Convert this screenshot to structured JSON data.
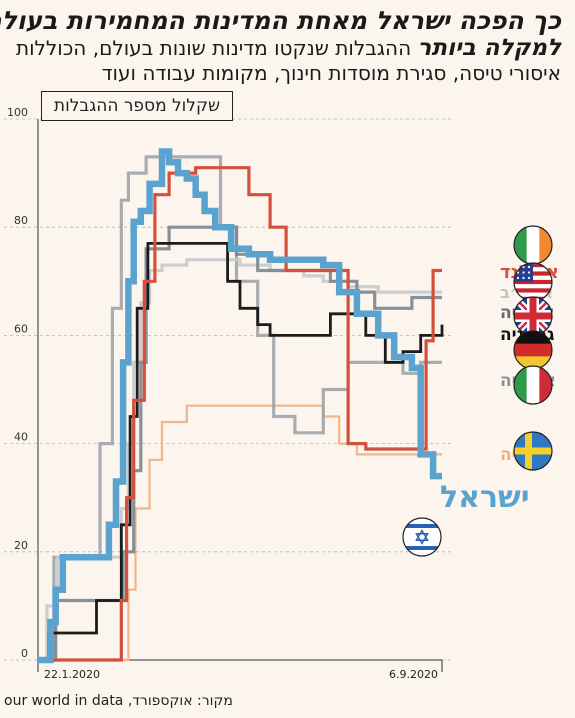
{
  "title": {
    "line1": "כך הפכה ישראל מאחת המדינות המחמירות בעולם",
    "line2_bold": "למקלה ביותר",
    "line2_rest": " ההגבלות שנקטו מדינות שונות בעולם, הכוללות",
    "line3": "איסורי טיסה, סגירת מוסדות חינוך, מקומות עבודה ועוד"
  },
  "source": "מקור: אוקספורד, our world in data",
  "colors": {
    "background": "#fbf5ee",
    "israel": "#5aa3cf",
    "ireland": "#d4503d",
    "usa": "#c8cacc",
    "england": "#7a8690",
    "germany": "#1c1c1c",
    "italy": "#9aa0a6",
    "sweden": "#f2b48a"
  },
  "chart_data": {
    "type": "line",
    "title": "שקלול מספר ההגבלות",
    "ylim": [
      0,
      100
    ],
    "yticks": [
      0,
      20,
      40,
      60,
      80,
      100
    ],
    "xlim": [
      "2020-01-22",
      "2020-09-06"
    ],
    "xtick_labels": [
      "22.1.2020",
      "6.9.2020"
    ],
    "grid": true,
    "series": [
      {
        "key": "israel",
        "name": "ישראל",
        "icon": "israel-flag-icon",
        "x": [
          "2020-01-22",
          "2020-01-29",
          "2020-02-01",
          "2020-02-05",
          "2020-02-12",
          "2020-02-24",
          "2020-03-02",
          "2020-03-06",
          "2020-03-10",
          "2020-03-13",
          "2020-03-16",
          "2020-03-20",
          "2020-03-25",
          "2020-04-01",
          "2020-04-05",
          "2020-04-10",
          "2020-04-15",
          "2020-04-20",
          "2020-04-25",
          "2020-05-01",
          "2020-05-10",
          "2020-05-20",
          "2020-06-01",
          "2020-06-10",
          "2020-06-20",
          "2020-07-01",
          "2020-07-10",
          "2020-07-20",
          "2020-08-01",
          "2020-08-10",
          "2020-08-20",
          "2020-08-25",
          "2020-09-01",
          "2020-09-06"
        ],
        "y": [
          0,
          7,
          13,
          19,
          19,
          19,
          25,
          33,
          55,
          70,
          81,
          83,
          88,
          94,
          92,
          90,
          89,
          86,
          83,
          80,
          76,
          75,
          74,
          74,
          74,
          73,
          68,
          64,
          60,
          56,
          54,
          38,
          34,
          34
        ]
      },
      {
        "key": "ireland",
        "name": "אירלנד",
        "icon": "ireland-flag-icon",
        "x": [
          "2020-01-22",
          "2020-02-20",
          "2020-03-09",
          "2020-03-12",
          "2020-03-16",
          "2020-03-22",
          "2020-03-28",
          "2020-04-05",
          "2020-04-20",
          "2020-05-20",
          "2020-06-01",
          "2020-06-10",
          "2020-06-28",
          "2020-07-15",
          "2020-07-25",
          "2020-08-20",
          "2020-08-28",
          "2020-09-01",
          "2020-09-06"
        ],
        "y": [
          0,
          0,
          11,
          30,
          48,
          70,
          86,
          90,
          91,
          86,
          80,
          72,
          72,
          40,
          39,
          39,
          59,
          72,
          72
        ]
      },
      {
        "key": "usa",
        "name": "ארה״ב",
        "icon": "usa-flag-icon",
        "x": [
          "2020-01-22",
          "2020-01-27",
          "2020-02-02",
          "2020-02-28",
          "2020-03-09",
          "2020-03-13",
          "2020-03-16",
          "2020-03-20",
          "2020-03-25",
          "2020-04-01",
          "2020-04-15",
          "2020-05-01",
          "2020-05-15",
          "2020-06-01",
          "2020-06-20",
          "2020-07-01",
          "2020-07-15",
          "2020-08-01",
          "2020-08-15",
          "2020-09-06"
        ],
        "y": [
          0,
          10,
          19,
          19,
          28,
          40,
          55,
          66,
          72,
          73,
          74,
          74,
          73,
          72,
          71,
          70,
          69,
          68,
          68,
          68
        ]
      },
      {
        "key": "england",
        "name": "אנגליה",
        "icon": "uk-flag-icon",
        "x": [
          "2020-01-22",
          "2020-02-01",
          "2020-03-02",
          "2020-03-10",
          "2020-03-16",
          "2020-03-20",
          "2020-03-23",
          "2020-04-05",
          "2020-05-01",
          "2020-05-13",
          "2020-05-25",
          "2020-06-01",
          "2020-06-15",
          "2020-06-25",
          "2020-07-05",
          "2020-07-20",
          "2020-07-30",
          "2020-08-10",
          "2020-08-20",
          "2020-08-30",
          "2020-09-06"
        ],
        "y": [
          0,
          11,
          11,
          20,
          35,
          55,
          76,
          80,
          80,
          75,
          72,
          72,
          72,
          72,
          70,
          68,
          65,
          65,
          67,
          67,
          67
        ]
      },
      {
        "key": "germany",
        "name": "גרמניה",
        "icon": "germany-flag-icon",
        "x": [
          "2020-01-22",
          "2020-01-28",
          "2020-02-07",
          "2020-02-24",
          "2020-03-02",
          "2020-03-09",
          "2020-03-14",
          "2020-03-18",
          "2020-03-24",
          "2020-04-01",
          "2020-04-15",
          "2020-05-01",
          "2020-05-08",
          "2020-05-15",
          "2020-05-25",
          "2020-06-01",
          "2020-06-25",
          "2020-07-05",
          "2020-07-15",
          "2020-07-25",
          "2020-08-05",
          "2020-08-15",
          "2020-08-25",
          "2020-09-06"
        ],
        "y": [
          0,
          5,
          5,
          11,
          11,
          25,
          45,
          65,
          77,
          77,
          77,
          77,
          70,
          65,
          62,
          60,
          60,
          64,
          64,
          60,
          55,
          57,
          60,
          62
        ]
      },
      {
        "key": "italy",
        "name": "איטליה",
        "icon": "italy-flag-icon",
        "x": [
          "2020-01-22",
          "2020-01-31",
          "2020-02-22",
          "2020-02-26",
          "2020-03-04",
          "2020-03-09",
          "2020-03-13",
          "2020-03-23",
          "2020-04-01",
          "2020-04-20",
          "2020-05-04",
          "2020-05-13",
          "2020-05-25",
          "2020-06-03",
          "2020-06-15",
          "2020-07-01",
          "2020-07-15",
          "2020-08-01",
          "2020-08-15",
          "2020-08-25",
          "2020-09-06"
        ],
        "y": [
          0,
          19,
          19,
          40,
          65,
          85,
          90,
          93,
          93,
          93,
          80,
          70,
          60,
          45,
          42,
          50,
          55,
          55,
          53,
          55,
          55
        ]
      },
      {
        "key": "sweden",
        "name": "שבדיה",
        "icon": "sweden-flag-icon",
        "x": [
          "2020-01-22",
          "2020-03-10",
          "2020-03-13",
          "2020-03-17",
          "2020-03-25",
          "2020-04-01",
          "2020-04-15",
          "2020-05-01",
          "2020-05-15",
          "2020-06-01",
          "2020-06-15",
          "2020-07-01",
          "2020-07-10",
          "2020-07-20",
          "2020-08-01",
          "2020-09-06"
        ],
        "y": [
          0,
          0,
          13,
          28,
          37,
          44,
          47,
          47,
          47,
          47,
          47,
          45,
          40,
          38,
          38,
          38
        ]
      }
    ]
  }
}
